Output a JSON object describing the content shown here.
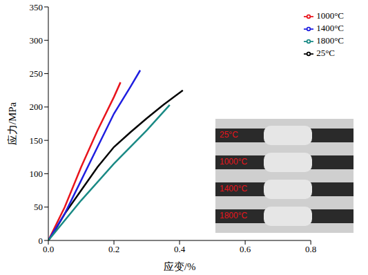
{
  "chart_data": {
    "type": "line",
    "x_label": "应变/%",
    "y_label": "应力/MPa",
    "xlim": [
      0,
      0.8
    ],
    "xticks": [
      {
        "value": 0,
        "label": "0.0"
      },
      {
        "value": 0.2,
        "label": "0.2"
      },
      {
        "value": 0.4,
        "label": "0.4"
      },
      {
        "value": 0.6,
        "label": "0.6"
      },
      {
        "value": 0.8,
        "label": "0.8"
      }
    ],
    "ylim": [
      0,
      350
    ],
    "yticks": [
      0,
      50,
      100,
      150,
      200,
      250,
      300,
      350
    ],
    "grid": false,
    "legend": "top-right",
    "series": [
      {
        "name": "25°C",
        "color": "#000000",
        "x": [
          0,
          0.02,
          0.05,
          0.1,
          0.15,
          0.2,
          0.25,
          0.3,
          0.35,
          0.41
        ],
        "values": [
          0,
          15,
          40,
          75,
          110,
          140,
          162,
          183,
          203,
          225
        ]
      },
      {
        "name": "1000°C",
        "color": "#e8141c",
        "x": [
          0,
          0.05,
          0.1,
          0.15,
          0.2,
          0.22
        ],
        "values": [
          0,
          50,
          110,
          165,
          215,
          237
        ]
      },
      {
        "name": "1400°C",
        "color": "#1f1fe0",
        "x": [
          0,
          0.05,
          0.1,
          0.15,
          0.2,
          0.25,
          0.28
        ],
        "values": [
          0,
          40,
          90,
          140,
          190,
          230,
          255
        ]
      },
      {
        "name": "1800°C",
        "color": "#1a8a85",
        "x": [
          0,
          0.1,
          0.2,
          0.3,
          0.37
        ],
        "values": [
          0,
          60,
          115,
          165,
          203
        ]
      }
    ],
    "inset_labels": [
      "25°C",
      "1000°C",
      "1400°C",
      "1800°C"
    ]
  }
}
